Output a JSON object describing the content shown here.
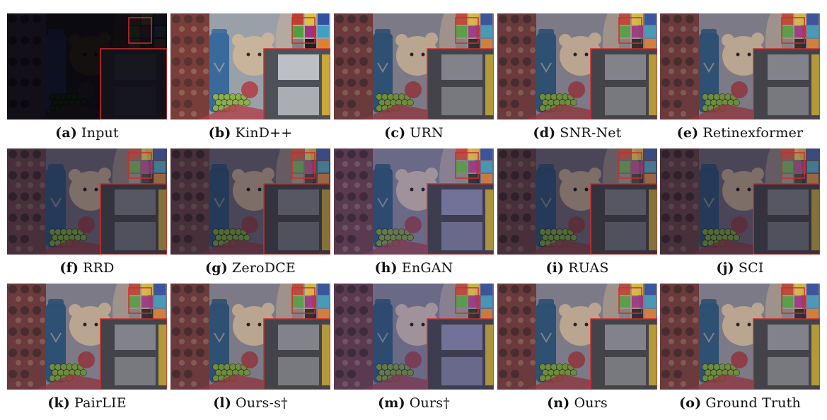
{
  "figure": {
    "panels": [
      {
        "tag": "(a)",
        "label": "Input",
        "tone": "input"
      },
      {
        "tag": "(b)",
        "label": "KinD++",
        "tone": "bright"
      },
      {
        "tag": "(c)",
        "label": "URN",
        "tone": "normal"
      },
      {
        "tag": "(d)",
        "label": "SNR-Net",
        "tone": "normal"
      },
      {
        "tag": "(e)",
        "label": "Retinexformer",
        "tone": "normal"
      },
      {
        "tag": "(f)",
        "label": "RRD",
        "tone": "dim"
      },
      {
        "tag": "(g)",
        "label": "ZeroDCE",
        "tone": "dim"
      },
      {
        "tag": "(h)",
        "label": "EnGAN",
        "tone": "purple"
      },
      {
        "tag": "(i)",
        "label": "RUAS",
        "tone": "dim"
      },
      {
        "tag": "(j)",
        "label": "SCI",
        "tone": "dim"
      },
      {
        "tag": "(k)",
        "label": "PairLIE",
        "tone": "normal"
      },
      {
        "tag": "(l)",
        "label": "Ours-s†",
        "tone": "normal"
      },
      {
        "tag": "(m)",
        "label": "Ours†",
        "tone": "purple"
      },
      {
        "tag": "(n)",
        "label": "Ours",
        "tone": "normal"
      },
      {
        "tag": "(o)",
        "label": "Ground Truth",
        "tone": "normal"
      }
    ]
  },
  "colors": {
    "zoom_box": "#d42a2a",
    "caption_text": "#111111"
  }
}
